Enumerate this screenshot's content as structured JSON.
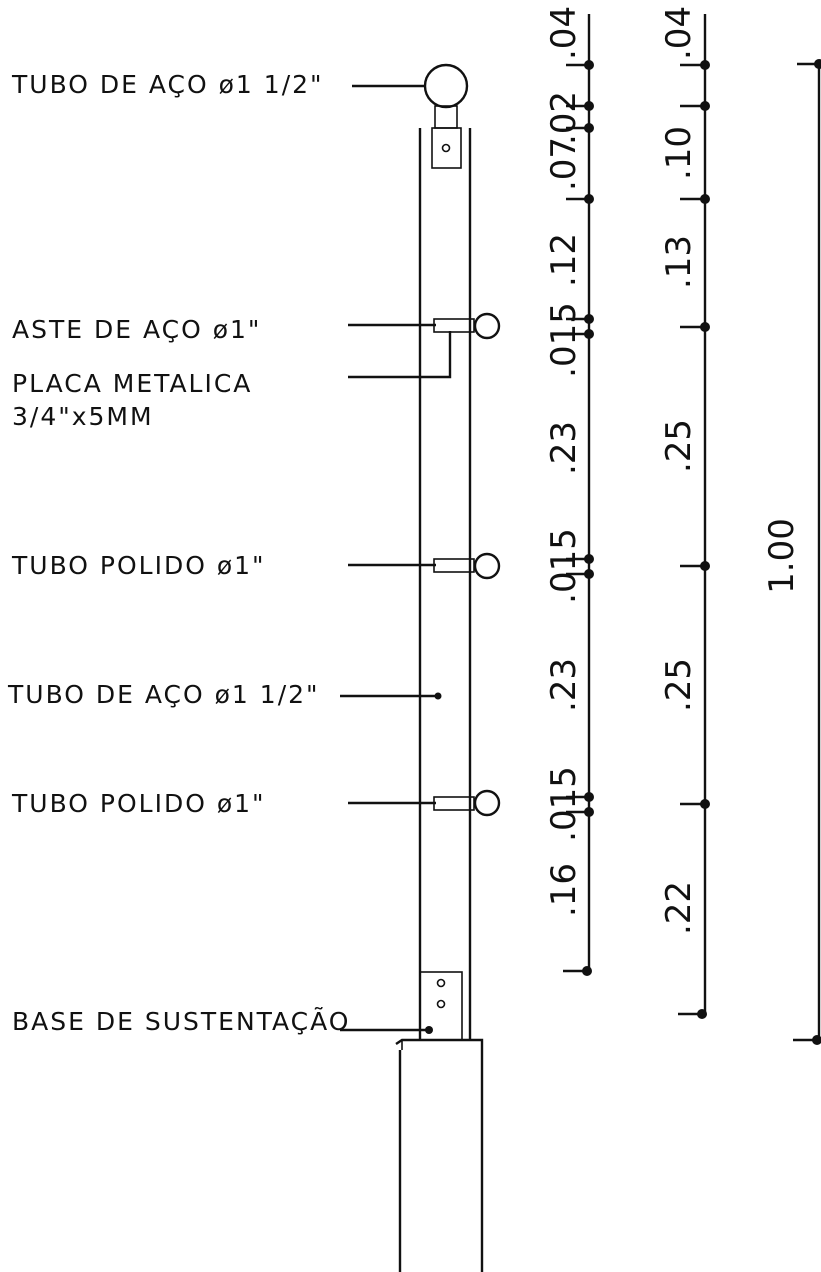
{
  "labels": {
    "top_rail": "TUBO DE AÇO ø1 1/2\"",
    "steel_rod": "ASTE DE AÇO ø1\"",
    "plate_line1": "PLACA METALICA",
    "plate_line2": "3/4\"x5MM",
    "polished_1": "TUBO POLIDO ø1\"",
    "post": "TUBO DE AÇO ø1 1/2\"",
    "polished_2": "TUBO POLIDO ø1\"",
    "base": "BASE DE SUSTENTAÇÃO"
  },
  "dims_col1": [
    ".04",
    ".02",
    ".07",
    ".12",
    ".015",
    ".23",
    ".015",
    ".23",
    ".015",
    ".16"
  ],
  "dims_col2": [
    ".04",
    ".10",
    ".13",
    ".25",
    ".25",
    ".22"
  ],
  "dims_col3": [
    "1.00"
  ]
}
